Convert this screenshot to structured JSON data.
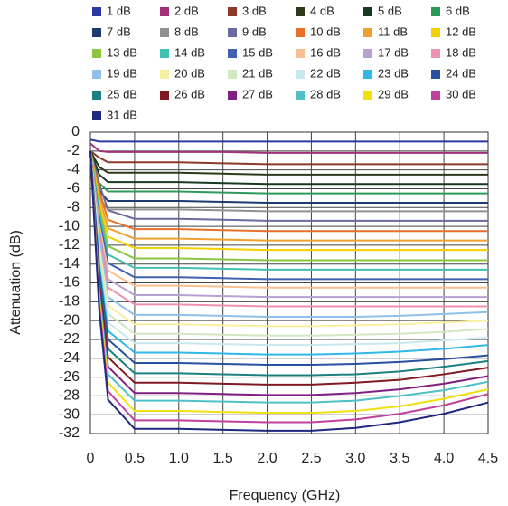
{
  "chart_data": {
    "type": "line",
    "x_label": "Frequency (GHz)",
    "y_label": "Attenuation (dB)",
    "x": [
      0,
      0.1,
      0.2,
      0.5,
      1,
      1.5,
      2,
      2.5,
      3,
      3.5,
      4,
      4.5
    ],
    "xlim": [
      0,
      4.5
    ],
    "xticks": [
      0,
      0.5,
      {
        "value": 1,
        "label": "1.0"
      },
      1.5,
      {
        "value": 2,
        "label": "2.0"
      },
      2.5,
      {
        "value": 3,
        "label": "3.0"
      },
      3.5,
      {
        "value": 4,
        "label": "4.0"
      },
      4.5
    ],
    "ylim": [
      -32,
      0
    ],
    "yticks": [
      0,
      -2,
      -4,
      -6,
      -8,
      -10,
      -12,
      -14,
      -16,
      -18,
      -20,
      -22,
      -24,
      -26,
      -28,
      -30,
      -32
    ],
    "grid": true,
    "series": [
      {
        "name": "1 dB",
        "color": "#2b3aa0",
        "values": [
          -0.8,
          -1,
          -1,
          -1,
          -1,
          -1,
          -1,
          -1,
          -1,
          -1,
          -1,
          -1
        ]
      },
      {
        "name": "2 dB",
        "color": "#a0307a",
        "values": [
          -1.2,
          -2,
          -2.1,
          -2.1,
          -2.1,
          -2.1,
          -2.2,
          -2.2,
          -2.2,
          -2.2,
          -2.2,
          -2.2
        ]
      },
      {
        "name": "3 dB",
        "color": "#8b3a2a",
        "values": [
          -2,
          -2.7,
          -3.2,
          -3.2,
          -3.2,
          -3.3,
          -3.4,
          -3.4,
          -3.4,
          -3.4,
          -3.4,
          -3.4
        ]
      },
      {
        "name": "4 dB",
        "color": "#2d3a1a",
        "values": [
          -2,
          -3.7,
          -4.3,
          -4.3,
          -4.3,
          -4.4,
          -4.5,
          -4.5,
          -4.5,
          -4.5,
          -4.5,
          -4.5
        ]
      },
      {
        "name": "5 dB",
        "color": "#163a1e",
        "values": [
          -2,
          -4.5,
          -5.3,
          -5.3,
          -5.3,
          -5.4,
          -5.5,
          -5.5,
          -5.5,
          -5.5,
          -5.5,
          -5.5
        ]
      },
      {
        "name": "6 dB",
        "color": "#2e9a5a",
        "values": [
          -2,
          -5.4,
          -6.3,
          -6.3,
          -6.3,
          -6.4,
          -6.5,
          -6.5,
          -6.5,
          -6.5,
          -6.5,
          -6.5
        ]
      },
      {
        "name": "7 dB",
        "color": "#1e3a6e",
        "values": [
          -2,
          -6.2,
          -7.3,
          -7.3,
          -7.3,
          -7.4,
          -7.5,
          -7.5,
          -7.5,
          -7.5,
          -7.5,
          -7.5
        ]
      },
      {
        "name": "8 dB",
        "color": "#909090",
        "values": [
          -2,
          -7,
          -8.2,
          -8.2,
          -8.2,
          -8.3,
          -8.4,
          -8.4,
          -8.4,
          -8.4,
          -8.4,
          -8.4
        ]
      },
      {
        "name": "9 dB",
        "color": "#6a6aa0",
        "values": [
          -2,
          -5.5,
          -8.3,
          -9.2,
          -9.2,
          -9.3,
          -9.4,
          -9.4,
          -9.4,
          -9.4,
          -9.4,
          -9.4
        ]
      },
      {
        "name": "10 dB",
        "color": "#e8702a",
        "values": [
          -2,
          -6.2,
          -9.3,
          -10.3,
          -10.3,
          -10.4,
          -10.5,
          -10.5,
          -10.5,
          -10.5,
          -10.5,
          -10.5
        ]
      },
      {
        "name": "11 dB",
        "color": "#f0a030",
        "values": [
          -2,
          -6.8,
          -10.2,
          -11.3,
          -11.3,
          -11.4,
          -11.5,
          -11.5,
          -11.5,
          -11.5,
          -11.5,
          -11.5
        ]
      },
      {
        "name": "12 dB",
        "color": "#f5d000",
        "values": [
          -2,
          -7.4,
          -11.1,
          -12.3,
          -12.3,
          -12.4,
          -12.5,
          -12.5,
          -12.5,
          -12.5,
          -12.5,
          -12.5
        ]
      },
      {
        "name": "13 dB",
        "color": "#8cc63f",
        "values": [
          -2,
          -8,
          -12.1,
          -13.4,
          -13.4,
          -13.5,
          -13.6,
          -13.6,
          -13.6,
          -13.6,
          -13.6,
          -13.6
        ]
      },
      {
        "name": "14 dB",
        "color": "#40c0b0",
        "values": [
          -2,
          -8.6,
          -13,
          -14.4,
          -14.4,
          -14.5,
          -14.6,
          -14.6,
          -14.6,
          -14.6,
          -14.6,
          -14.6
        ]
      },
      {
        "name": "15 dB",
        "color": "#4060b0",
        "values": [
          -2,
          -9.2,
          -13.9,
          -15.4,
          -15.4,
          -15.5,
          -15.6,
          -15.6,
          -15.6,
          -15.6,
          -15.6,
          -15.6
        ]
      },
      {
        "name": "16 dB",
        "color": "#f8c090",
        "values": [
          -2,
          -9.8,
          -14.7,
          -16.3,
          -16.3,
          -16.4,
          -16.5,
          -16.5,
          -16.5,
          -16.5,
          -16.5,
          -16.5
        ]
      },
      {
        "name": "17 dB",
        "color": "#b8a0d0",
        "values": [
          -2,
          -10.4,
          -15.6,
          -17.3,
          -17.3,
          -17.4,
          -17.5,
          -17.5,
          -17.5,
          -17.5,
          -17.5,
          -17.5
        ]
      },
      {
        "name": "18 dB",
        "color": "#f090b0",
        "values": [
          -2,
          -11,
          -16.5,
          -18.3,
          -18.3,
          -18.4,
          -18.5,
          -18.5,
          -18.5,
          -18.5,
          -18.5,
          -18.5
        ]
      },
      {
        "name": "19 dB",
        "color": "#90c0e8",
        "values": [
          -2,
          -11.6,
          -17.5,
          -19.4,
          -19.4,
          -19.5,
          -19.6,
          -19.6,
          -19.6,
          -19.5,
          -19.3,
          -19.1
        ]
      },
      {
        "name": "20 dB",
        "color": "#f8f0a0",
        "values": [
          -2,
          -12.2,
          -18.4,
          -20.4,
          -20.4,
          -20.5,
          -20.6,
          -20.6,
          -20.5,
          -20.4,
          -20.2,
          -20
        ]
      },
      {
        "name": "21 dB",
        "color": "#d0e8c0",
        "values": [
          -2,
          -12.8,
          -19.3,
          -21.4,
          -21.4,
          -21.5,
          -21.6,
          -21.6,
          -21.5,
          -21.4,
          -21.2,
          -20.9
        ]
      },
      {
        "name": "22 dB",
        "color": "#c8e8f0",
        "values": [
          -2,
          -13.4,
          -20.2,
          -22.4,
          -22.4,
          -22.5,
          -22.6,
          -22.6,
          -22.5,
          -22.4,
          -22.1,
          -21.8
        ]
      },
      {
        "name": "23 dB",
        "color": "#30b8e8",
        "values": [
          -2,
          -14,
          -21.1,
          -23.4,
          -23.4,
          -23.5,
          -23.6,
          -23.6,
          -23.5,
          -23.3,
          -23,
          -22.6
        ]
      },
      {
        "name": "24 dB",
        "color": "#2850a0",
        "values": [
          -2,
          -14.7,
          -22,
          -24.5,
          -24.5,
          -24.6,
          -24.7,
          -24.7,
          -24.6,
          -24.4,
          -24.1,
          -23.7
        ]
      },
      {
        "name": "25 dB",
        "color": "#1a8080",
        "values": [
          -2,
          -15.4,
          -23,
          -25.6,
          -25.6,
          -25.7,
          -25.8,
          -25.8,
          -25.7,
          -25.4,
          -24.9,
          -24.3
        ]
      },
      {
        "name": "26 dB",
        "color": "#801a20",
        "values": [
          -2,
          -16,
          -23.9,
          -26.6,
          -26.6,
          -26.7,
          -26.8,
          -26.8,
          -26.6,
          -26.3,
          -25.7,
          -25
        ]
      },
      {
        "name": "27 dB",
        "color": "#802080",
        "values": [
          -2,
          -16.6,
          -24.9,
          -27.7,
          -27.7,
          -27.8,
          -27.9,
          -27.9,
          -27.7,
          -27.3,
          -26.7,
          -25.9
        ]
      },
      {
        "name": "28 dB",
        "color": "#50c0c8",
        "values": [
          -2,
          -17.1,
          -25.7,
          -28.5,
          -28.5,
          -28.6,
          -28.7,
          -28.7,
          -28.5,
          -28,
          -27.4,
          -26.5
        ]
      },
      {
        "name": "29 dB",
        "color": "#f0e010",
        "values": [
          -2,
          -17.8,
          -26.6,
          -29.6,
          -29.6,
          -29.7,
          -29.8,
          -29.8,
          -29.6,
          -29.1,
          -28.3,
          -27.3
        ]
      },
      {
        "name": "30 dB",
        "color": "#c040a0",
        "values": [
          -2,
          -18.4,
          -27.5,
          -30.6,
          -30.6,
          -30.7,
          -30.8,
          -30.8,
          -30.5,
          -29.9,
          -29,
          -27.8
        ]
      },
      {
        "name": "31 dB",
        "color": "#202880",
        "values": [
          -2,
          -18.9,
          -28.4,
          -31.5,
          -31.5,
          -31.6,
          -31.7,
          -31.7,
          -31.4,
          -30.8,
          -29.9,
          -28.7
        ]
      }
    ]
  }
}
